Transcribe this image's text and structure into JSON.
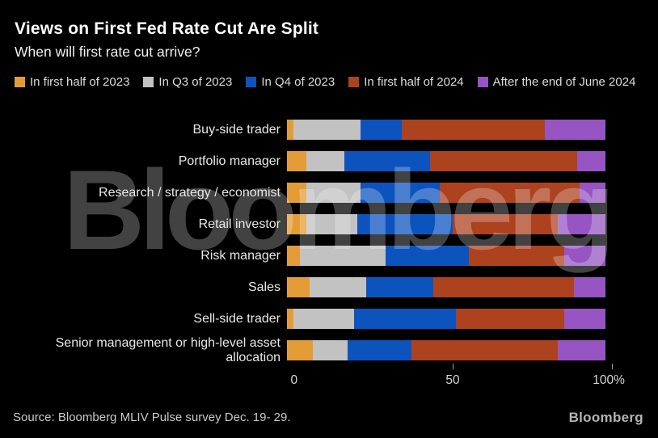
{
  "header": {
    "title": "Views on First Fed Rate Cut Are Split",
    "subtitle": "When will first rate cut arrive?"
  },
  "colors": {
    "background": "#000000",
    "first_half_2023": "#E39C35",
    "q3_2023": "#C2C2C2",
    "q4_2023": "#0D53BE",
    "first_half_2024": "#AD421F",
    "after_june_2024": "#9655C2"
  },
  "legend": [
    {
      "label": "In first half of 2023",
      "color": "#E39C35"
    },
    {
      "label": "In Q3 of 2023",
      "color": "#C2C2C2"
    },
    {
      "label": "In Q4 of 2023",
      "color": "#0D53BE"
    },
    {
      "label": "In first half of 2024",
      "color": "#AD421F"
    },
    {
      "label": "After the end of June 2024",
      "color": "#9655C2"
    }
  ],
  "chart_data": {
    "type": "bar",
    "orientation": "horizontal",
    "stacked": true,
    "unit": "percent",
    "title": "Views on First Fed Rate Cut Are Split",
    "subtitle": "When will first rate cut arrive?",
    "categories": [
      "Buy-side trader",
      "Portfolio manager",
      "Research / strategy / economist",
      "Retail investor",
      "Risk manager",
      "Sales",
      "Sell-side trader",
      "Senior management or high-level asset allocation"
    ],
    "series": [
      {
        "name": "In first half of 2023",
        "color": "#E39C35",
        "values": [
          2,
          6,
          6,
          6,
          4,
          7,
          2,
          8
        ]
      },
      {
        "name": "In Q3 of 2023",
        "color": "#C2C2C2",
        "values": [
          21,
          12,
          17,
          16,
          27,
          18,
          19,
          11
        ]
      },
      {
        "name": "In Q4 of 2023",
        "color": "#0D53BE",
        "values": [
          13,
          27,
          25,
          30,
          26,
          21,
          32,
          20
        ]
      },
      {
        "name": "In first half of 2024",
        "color": "#AD421F",
        "values": [
          45,
          46,
          44,
          33,
          30,
          44,
          34,
          46
        ]
      },
      {
        "name": "After the end of June 2024",
        "color": "#9655C2",
        "values": [
          19,
          9,
          8,
          15,
          13,
          10,
          13,
          15
        ]
      }
    ],
    "xlim": [
      0,
      100
    ],
    "x_ticks": [
      "0",
      "50",
      "100%"
    ],
    "legend_position": "top",
    "grid": false
  },
  "watermark": "Bloomberg",
  "footer": {
    "source": "Source: Bloomberg MLIV Pulse survey Dec. 19- 29.",
    "logo": "Bloomberg"
  }
}
